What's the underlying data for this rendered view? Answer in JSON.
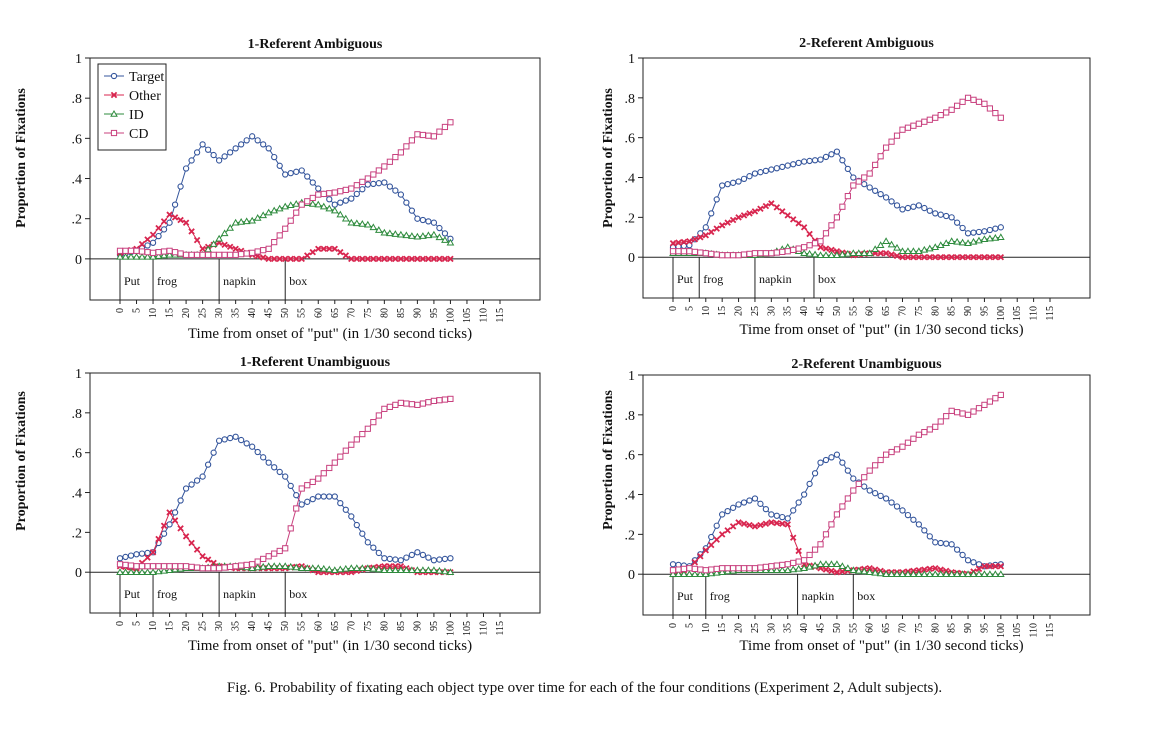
{
  "caption": "Fig. 6.  Probability of fixating each object type over time for each of the four conditions (Experiment 2, Adult subjects).",
  "colors": {
    "Target": "#34559c",
    "Other": "#d8264f",
    "ID": "#2e8b3d",
    "CD": "#c8407e"
  },
  "chart_data": [
    {
      "type": "line",
      "title": "1-Referent Ambiguous",
      "xlabel": "Time from  onset of \"put\" (in 1/30 second ticks)",
      "ylabel": "Proportion of Fixations",
      "ylim": [
        0,
        1
      ],
      "yticks": [
        "0",
        ".2",
        ".4",
        ".6",
        ".8",
        "1"
      ],
      "xticks": [
        "0",
        "5",
        "10",
        "15",
        "20",
        "25",
        "30",
        "35",
        "40",
        "45",
        "50",
        "55",
        "60",
        "65",
        "70",
        "75",
        "80",
        "85",
        "90",
        "95",
        "100",
        "105",
        "110",
        "115"
      ],
      "legend": {
        "position": "top-left",
        "entries": [
          "Target",
          "Other",
          "ID",
          "CD"
        ]
      },
      "segments": [
        {
          "label": "Put",
          "start": 0
        },
        {
          "label": "frog",
          "start": 10
        },
        {
          "label": "napkin",
          "start": 30
        },
        {
          "label": "box",
          "start": 50
        }
      ],
      "series": [
        {
          "name": "Target",
          "x": [
            0,
            5,
            10,
            15,
            20,
            25,
            30,
            35,
            40,
            45,
            50,
            55,
            60,
            65,
            70,
            75,
            80,
            85,
            90,
            95,
            100
          ],
          "values": [
            0.02,
            0.04,
            0.08,
            0.18,
            0.45,
            0.57,
            0.49,
            0.55,
            0.61,
            0.55,
            0.42,
            0.44,
            0.35,
            0.27,
            0.3,
            0.37,
            0.38,
            0.32,
            0.2,
            0.18,
            0.1
          ]
        },
        {
          "name": "Other",
          "x": [
            0,
            5,
            10,
            15,
            20,
            25,
            30,
            35,
            40,
            45,
            50,
            55,
            60,
            65,
            70,
            75,
            80,
            85,
            90,
            95,
            100
          ],
          "values": [
            0.03,
            0.05,
            0.12,
            0.22,
            0.18,
            0.05,
            0.08,
            0.05,
            0.02,
            0.0,
            0.0,
            0.0,
            0.05,
            0.05,
            0.0,
            0.0,
            0.0,
            0.0,
            0.0,
            0.0,
            0.0
          ]
        },
        {
          "name": "ID",
          "x": [
            0,
            5,
            10,
            15,
            20,
            25,
            30,
            35,
            40,
            45,
            50,
            55,
            60,
            65,
            70,
            75,
            80,
            85,
            90,
            95,
            100
          ],
          "values": [
            0.01,
            0.01,
            0.01,
            0.02,
            0.02,
            0.02,
            0.1,
            0.18,
            0.19,
            0.23,
            0.26,
            0.28,
            0.27,
            0.24,
            0.18,
            0.17,
            0.13,
            0.12,
            0.11,
            0.12,
            0.08
          ]
        },
        {
          "name": "CD",
          "x": [
            0,
            5,
            10,
            15,
            20,
            25,
            30,
            35,
            40,
            45,
            50,
            55,
            60,
            65,
            70,
            75,
            80,
            85,
            90,
            95,
            100
          ],
          "values": [
            0.04,
            0.04,
            0.03,
            0.04,
            0.02,
            0.02,
            0.02,
            0.02,
            0.03,
            0.05,
            0.15,
            0.27,
            0.32,
            0.33,
            0.35,
            0.4,
            0.46,
            0.53,
            0.62,
            0.61,
            0.68
          ]
        }
      ]
    },
    {
      "type": "line",
      "title": "2-Referent Ambiguous",
      "xlabel": "Time from  onset of \"put\" (in 1/30 second ticks)",
      "ylabel": "Proportion of Fixations",
      "ylim": [
        0,
        1
      ],
      "yticks": [
        "0",
        ".2",
        ".4",
        ".6",
        ".8",
        "1"
      ],
      "xticks": [
        "0",
        "5",
        "10",
        "15",
        "20",
        "25",
        "30",
        "35",
        "40",
        "45",
        "50",
        "55",
        "60",
        "65",
        "70",
        "75",
        "80",
        "85",
        "90",
        "95",
        "100",
        "105",
        "110",
        "115"
      ],
      "segments": [
        {
          "label": "Put",
          "start": 0
        },
        {
          "label": "frog",
          "start": 8
        },
        {
          "label": "napkin",
          "start": 25
        },
        {
          "label": "box",
          "start": 43
        }
      ],
      "series": [
        {
          "name": "Target",
          "x": [
            0,
            5,
            10,
            15,
            20,
            25,
            30,
            35,
            40,
            45,
            50,
            55,
            60,
            65,
            70,
            75,
            80,
            85,
            90,
            95,
            100
          ],
          "values": [
            0.05,
            0.06,
            0.15,
            0.36,
            0.38,
            0.42,
            0.44,
            0.46,
            0.48,
            0.49,
            0.53,
            0.4,
            0.35,
            0.3,
            0.24,
            0.26,
            0.22,
            0.2,
            0.12,
            0.13,
            0.15
          ]
        },
        {
          "name": "Other",
          "x": [
            0,
            5,
            10,
            15,
            20,
            25,
            30,
            35,
            40,
            45,
            50,
            55,
            60,
            65,
            70,
            75,
            80,
            85,
            90,
            95,
            100
          ],
          "values": [
            0.07,
            0.08,
            0.11,
            0.16,
            0.2,
            0.23,
            0.27,
            0.21,
            0.15,
            0.05,
            0.03,
            0.01,
            0.02,
            0.02,
            0.0,
            0.0,
            0.0,
            0.0,
            0.0,
            0.0,
            0.0
          ]
        },
        {
          "name": "ID",
          "x": [
            0,
            5,
            10,
            15,
            20,
            25,
            30,
            35,
            40,
            45,
            50,
            55,
            60,
            65,
            70,
            75,
            80,
            85,
            90,
            95,
            100
          ],
          "values": [
            0.02,
            0.02,
            0.02,
            0.01,
            0.01,
            0.01,
            0.02,
            0.05,
            0.02,
            0.01,
            0.01,
            0.02,
            0.02,
            0.08,
            0.03,
            0.03,
            0.05,
            0.08,
            0.07,
            0.09,
            0.1
          ]
        },
        {
          "name": "CD",
          "x": [
            0,
            5,
            10,
            15,
            20,
            25,
            30,
            35,
            40,
            45,
            50,
            55,
            60,
            65,
            70,
            75,
            80,
            85,
            90,
            95,
            100
          ],
          "values": [
            0.03,
            0.03,
            0.02,
            0.01,
            0.01,
            0.02,
            0.02,
            0.03,
            0.05,
            0.08,
            0.2,
            0.36,
            0.42,
            0.55,
            0.64,
            0.67,
            0.7,
            0.74,
            0.8,
            0.77,
            0.7
          ]
        }
      ]
    },
    {
      "type": "line",
      "title": "1-Referent Unambiguous",
      "xlabel": "Time from  onset of \"put\" (in 1/30 second ticks)",
      "ylabel": "Proportion of Fixations",
      "ylim": [
        0,
        1
      ],
      "yticks": [
        "0",
        ".2",
        ".4",
        ".6",
        ".8",
        "1"
      ],
      "xticks": [
        "0",
        "5",
        "10",
        "15",
        "20",
        "25",
        "30",
        "35",
        "40",
        "45",
        "50",
        "55",
        "60",
        "65",
        "70",
        "75",
        "80",
        "85",
        "90",
        "95",
        "100",
        "105",
        "110",
        "115"
      ],
      "segments": [
        {
          "label": "Put",
          "start": 0
        },
        {
          "label": "frog",
          "start": 10
        },
        {
          "label": "napkin",
          "start": 30
        },
        {
          "label": "box",
          "start": 50
        }
      ],
      "series": [
        {
          "name": "Target",
          "x": [
            0,
            5,
            10,
            15,
            20,
            25,
            30,
            35,
            40,
            45,
            50,
            55,
            60,
            65,
            70,
            75,
            80,
            85,
            90,
            95,
            100
          ],
          "values": [
            0.07,
            0.09,
            0.1,
            0.24,
            0.42,
            0.48,
            0.66,
            0.68,
            0.63,
            0.55,
            0.48,
            0.34,
            0.38,
            0.38,
            0.28,
            0.15,
            0.07,
            0.06,
            0.1,
            0.06,
            0.07
          ]
        },
        {
          "name": "Other",
          "x": [
            0,
            5,
            10,
            15,
            20,
            25,
            30,
            35,
            40,
            45,
            50,
            55,
            60,
            65,
            70,
            75,
            80,
            85,
            90,
            95,
            100
          ],
          "values": [
            0.03,
            0.02,
            0.1,
            0.3,
            0.18,
            0.08,
            0.03,
            0.02,
            0.02,
            0.02,
            0.02,
            0.03,
            0.0,
            0.0,
            0.0,
            0.02,
            0.03,
            0.03,
            0.0,
            0.0,
            0.0
          ]
        },
        {
          "name": "ID",
          "x": [
            0,
            5,
            10,
            15,
            20,
            25,
            30,
            35,
            40,
            45,
            50,
            55,
            60,
            65,
            70,
            75,
            80,
            85,
            90,
            95,
            100
          ],
          "values": [
            0.0,
            0.0,
            0.0,
            0.01,
            0.02,
            0.02,
            0.03,
            0.03,
            0.02,
            0.03,
            0.03,
            0.02,
            0.02,
            0.01,
            0.02,
            0.02,
            0.01,
            0.01,
            0.01,
            0.01,
            0.0
          ]
        },
        {
          "name": "CD",
          "x": [
            0,
            5,
            10,
            15,
            20,
            25,
            30,
            35,
            40,
            45,
            50,
            55,
            60,
            65,
            70,
            75,
            80,
            85,
            90,
            95,
            100
          ],
          "values": [
            0.04,
            0.03,
            0.03,
            0.03,
            0.03,
            0.02,
            0.02,
            0.03,
            0.04,
            0.08,
            0.12,
            0.42,
            0.47,
            0.55,
            0.64,
            0.72,
            0.82,
            0.85,
            0.84,
            0.86,
            0.87
          ]
        }
      ]
    },
    {
      "type": "line",
      "title": "2-Referent Unambiguous",
      "xlabel": "Time from  onset of \"put\" (in 1/30 second ticks)",
      "ylabel": "Proportion of Fixations",
      "ylim": [
        0,
        1
      ],
      "yticks": [
        "0",
        ".2",
        ".4",
        ".6",
        ".8",
        "1"
      ],
      "xticks": [
        "0",
        "5",
        "10",
        "15",
        "20",
        "25",
        "30",
        "35",
        "40",
        "45",
        "50",
        "55",
        "60",
        "65",
        "70",
        "75",
        "80",
        "85",
        "90",
        "95",
        "100",
        "105",
        "110",
        "115"
      ],
      "segments": [
        {
          "label": "Put",
          "start": 0
        },
        {
          "label": "frog",
          "start": 10
        },
        {
          "label": "napkin",
          "start": 38
        },
        {
          "label": "box",
          "start": 55
        }
      ],
      "series": [
        {
          "name": "Target",
          "x": [
            0,
            5,
            10,
            15,
            20,
            25,
            30,
            35,
            40,
            45,
            50,
            55,
            60,
            65,
            70,
            75,
            80,
            85,
            90,
            95,
            100
          ],
          "values": [
            0.05,
            0.04,
            0.13,
            0.3,
            0.35,
            0.38,
            0.3,
            0.28,
            0.4,
            0.56,
            0.6,
            0.48,
            0.42,
            0.38,
            0.32,
            0.25,
            0.16,
            0.15,
            0.07,
            0.04,
            0.05
          ]
        },
        {
          "name": "Other",
          "x": [
            0,
            5,
            10,
            15,
            20,
            25,
            30,
            35,
            40,
            45,
            50,
            55,
            60,
            65,
            70,
            75,
            80,
            85,
            90,
            95,
            100
          ],
          "values": [
            0.0,
            0.03,
            0.12,
            0.2,
            0.26,
            0.24,
            0.26,
            0.25,
            0.05,
            0.03,
            0.01,
            0.02,
            0.03,
            0.01,
            0.01,
            0.02,
            0.03,
            0.01,
            0.0,
            0.04,
            0.04
          ]
        },
        {
          "name": "ID",
          "x": [
            0,
            5,
            10,
            15,
            20,
            25,
            30,
            35,
            40,
            45,
            50,
            55,
            60,
            65,
            70,
            75,
            80,
            85,
            90,
            95,
            100
          ],
          "values": [
            0.0,
            0.0,
            0.0,
            0.01,
            0.02,
            0.02,
            0.02,
            0.02,
            0.03,
            0.05,
            0.05,
            0.02,
            0.01,
            0.0,
            0.0,
            0.0,
            0.0,
            0.0,
            0.0,
            0.0,
            0.0
          ]
        },
        {
          "name": "CD",
          "x": [
            0,
            5,
            10,
            15,
            20,
            25,
            30,
            35,
            40,
            45,
            50,
            55,
            60,
            65,
            70,
            75,
            80,
            85,
            90,
            95,
            100
          ],
          "values": [
            0.02,
            0.03,
            0.02,
            0.03,
            0.03,
            0.03,
            0.04,
            0.05,
            0.07,
            0.15,
            0.3,
            0.42,
            0.52,
            0.6,
            0.64,
            0.7,
            0.74,
            0.82,
            0.8,
            0.85,
            0.9
          ]
        }
      ]
    }
  ]
}
